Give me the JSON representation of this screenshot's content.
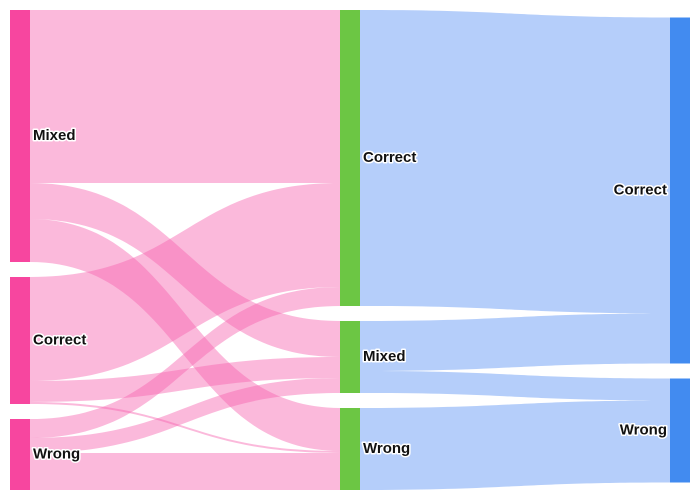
{
  "chart_data": {
    "type": "sankey",
    "nodes": [
      {
        "name": "Mixed",
        "color": "#f7469f"
      },
      {
        "name": "Correct",
        "color": "#f7469f"
      },
      {
        "name": "Wrong",
        "color": "#f7469f"
      },
      {
        "name": "Correct",
        "color": "#6cc644"
      },
      {
        "name": "Mixed",
        "color": "#6cc644"
      },
      {
        "name": "Wrong",
        "color": "#6cc644"
      },
      {
        "name": "Correct",
        "color": "#428bf0"
      },
      {
        "name": "Wrong",
        "color": "#428bf0"
      }
    ],
    "links": [
      {
        "source": 0,
        "target": 3,
        "value": 173,
        "color": "rgba(247,100,175,0.45)"
      },
      {
        "source": 0,
        "target": 4,
        "value": 36,
        "color": "rgba(247,100,175,0.45)"
      },
      {
        "source": 0,
        "target": 5,
        "value": 43,
        "color": "rgba(247,100,175,0.45)"
      },
      {
        "source": 1,
        "target": 3,
        "value": 104,
        "color": "rgba(247,100,175,0.45)"
      },
      {
        "source": 1,
        "target": 4,
        "value": 21,
        "color": "rgba(247,100,175,0.45)"
      },
      {
        "source": 1,
        "target": 5,
        "value": 2,
        "color": "rgba(247,100,175,0.45)"
      },
      {
        "source": 2,
        "target": 3,
        "value": 19,
        "color": "rgba(247,100,175,0.45)"
      },
      {
        "source": 2,
        "target": 4,
        "value": 15,
        "color": "rgba(247,100,175,0.45)"
      },
      {
        "source": 2,
        "target": 5,
        "value": 37,
        "color": "rgba(247,100,175,0.45)"
      },
      {
        "source": 3,
        "target": 6,
        "value": 296,
        "color": "rgba(120,165,245,0.55)"
      },
      {
        "source": 4,
        "target": 6,
        "value": 50,
        "color": "rgba(120,165,245,0.55)"
      },
      {
        "source": 4,
        "target": 7,
        "value": 22,
        "color": "rgba(120,165,245,0.55)"
      },
      {
        "source": 5,
        "target": 7,
        "value": 82,
        "color": "rgba(120,165,245,0.55)"
      }
    ]
  }
}
